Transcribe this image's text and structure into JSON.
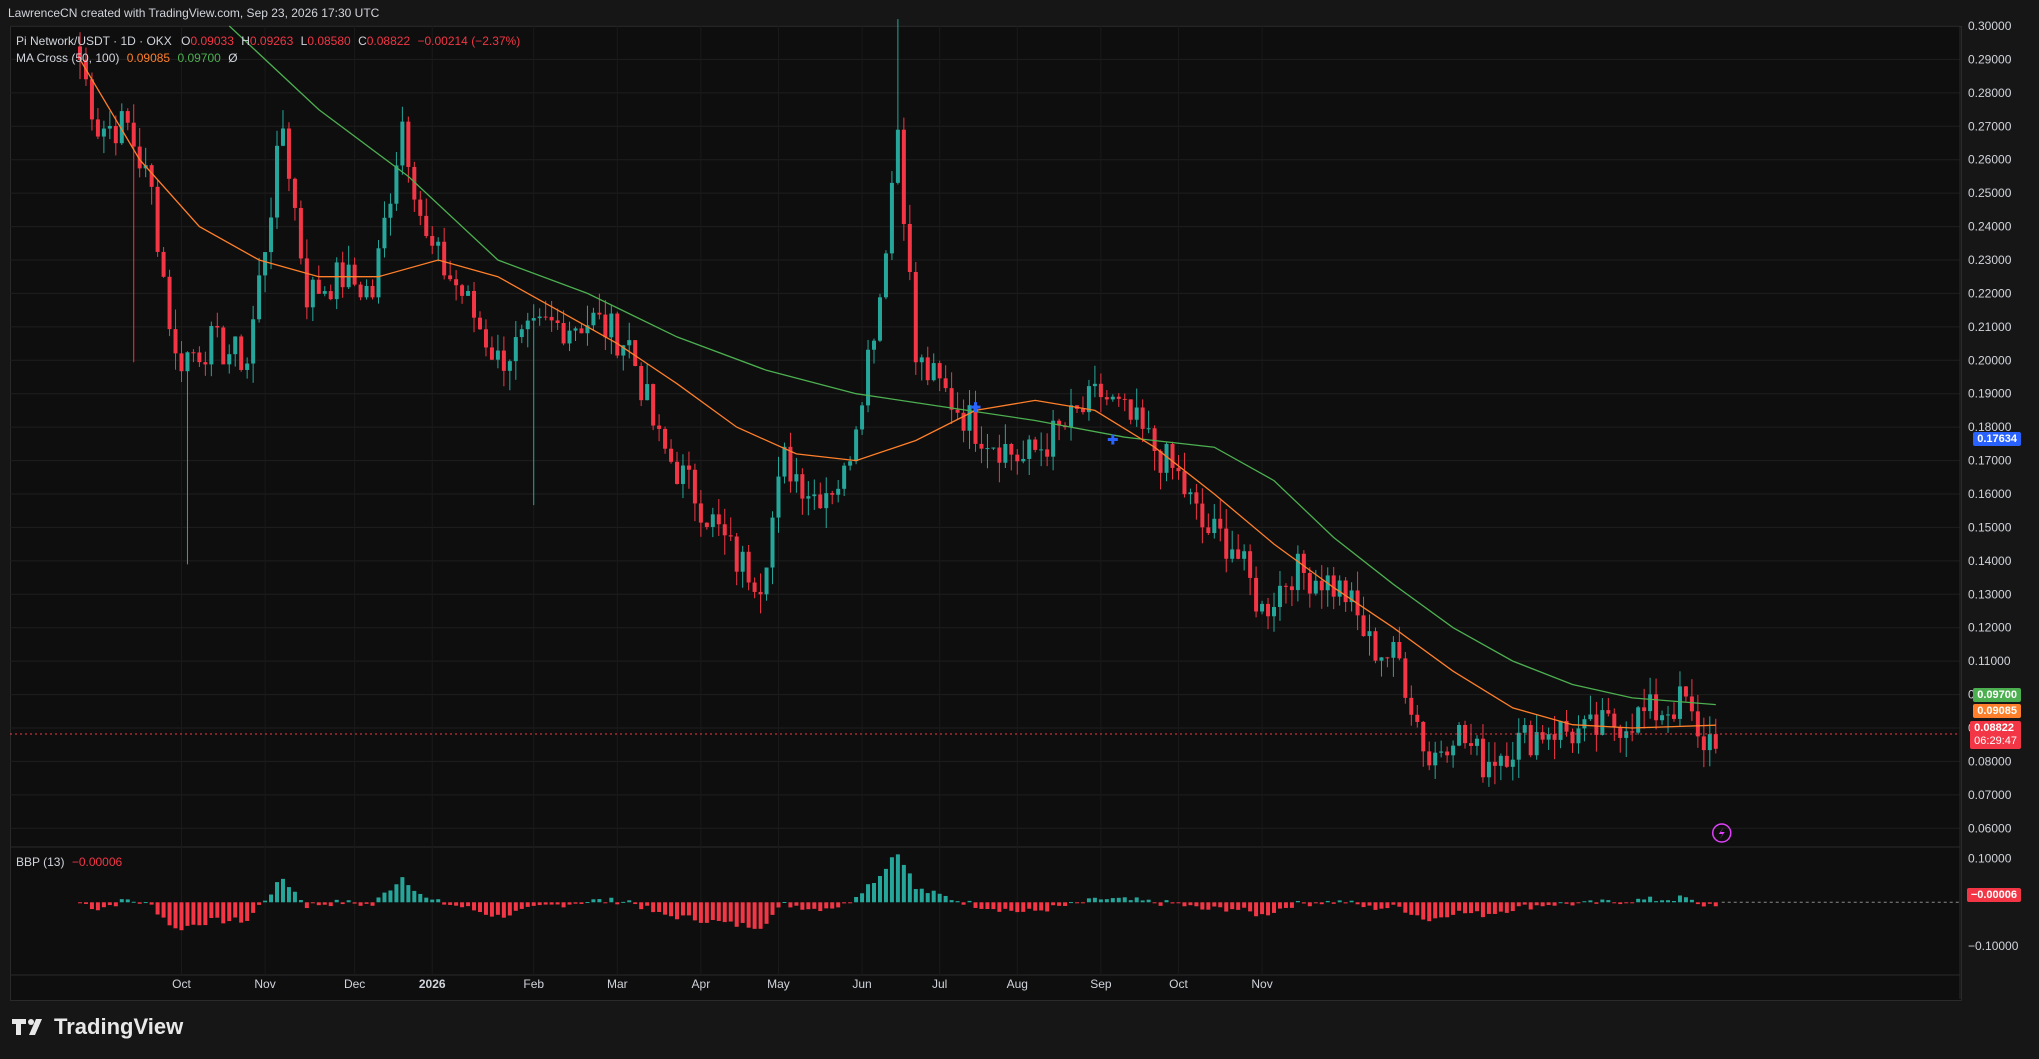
{
  "header": {
    "attribution": "LawrenceCN created with TradingView.com, Sep 23, 2026 17:30 UTC"
  },
  "legend": {
    "symbol": "Pi Network/USDT · 1D · OKX",
    "o_label": "O",
    "o_value": "0.09033",
    "h_label": "H",
    "h_value": "0.09263",
    "l_label": "L",
    "l_value": "0.08580",
    "c_label": "C",
    "c_value": "0.08822",
    "change": "−0.00214 (−2.37%)",
    "ma_title": "MA Cross (50, 100)",
    "ma50_value": "0.09085",
    "ma100_value": "0.09700",
    "ma_extra": "Ø",
    "bbp_title": "BBP (13)",
    "bbp_value": "−0.00006"
  },
  "price_tags": {
    "ma100": "0.09700",
    "ma50": "0.09085",
    "last": "0.08822",
    "countdown": "06:29:47",
    "cross": "0.17634",
    "bbp": "−0.00006"
  },
  "colors": {
    "up": "#26a69a",
    "down": "#f23645",
    "ma50": "#ff7f2a",
    "ma100": "#4caf50",
    "cross_tag": "#2962ff",
    "background": "#0e0e0e"
  },
  "brand": {
    "name": "TradingView"
  },
  "chart_data": {
    "type": "candlestick",
    "y_axis": {
      "min": 0.055,
      "max": 0.3,
      "ticks": [
        "0.30000",
        "0.29000",
        "0.28000",
        "0.27000",
        "0.26000",
        "0.25000",
        "0.24000",
        "0.23000",
        "0.22000",
        "0.21000",
        "0.20000",
        "0.19000",
        "0.18000",
        "0.17000",
        "0.16000",
        "0.15000",
        "0.14000",
        "0.13000",
        "0.12000",
        "0.11000",
        "0.10000",
        "0.09000",
        "0.08000",
        "0.07000",
        "0.06000"
      ]
    },
    "x_axis": {
      "ticks": [
        "Oct",
        "Nov",
        "Dec",
        "2026",
        "Feb",
        "Mar",
        "Apr",
        "May",
        "Jun",
        "Jul",
        "Aug",
        "Sep",
        "Oct",
        "Nov"
      ]
    },
    "bbp_axis": {
      "ticks": [
        "0.10000",
        "−0.10000"
      ],
      "min": -0.16,
      "max": 0.12
    },
    "anchors": [
      [
        0,
        0.29
      ],
      [
        3,
        0.27
      ],
      [
        8,
        0.27
      ],
      [
        12,
        0.25
      ],
      [
        16,
        0.2
      ],
      [
        22,
        0.205
      ],
      [
        28,
        0.2
      ],
      [
        34,
        0.27
      ],
      [
        38,
        0.22
      ],
      [
        44,
        0.225
      ],
      [
        49,
        0.22
      ],
      [
        54,
        0.272
      ],
      [
        58,
        0.235
      ],
      [
        64,
        0.22
      ],
      [
        70,
        0.2
      ],
      [
        78,
        0.21
      ],
      [
        86,
        0.212
      ],
      [
        92,
        0.205
      ],
      [
        97,
        0.175
      ],
      [
        103,
        0.16
      ],
      [
        110,
        0.14
      ],
      [
        114,
        0.135
      ],
      [
        118,
        0.17
      ],
      [
        123,
        0.16
      ],
      [
        128,
        0.165
      ],
      [
        134,
        0.22
      ],
      [
        137,
        0.27
      ],
      [
        140,
        0.2
      ],
      [
        145,
        0.19
      ],
      [
        150,
        0.18
      ],
      [
        158,
        0.17
      ],
      [
        165,
        0.18
      ],
      [
        171,
        0.19
      ],
      [
        177,
        0.18
      ],
      [
        184,
        0.165
      ],
      [
        188,
        0.15
      ],
      [
        193,
        0.145
      ],
      [
        198,
        0.125
      ],
      [
        203,
        0.137
      ],
      [
        208,
        0.135
      ],
      [
        212,
        0.13
      ],
      [
        216,
        0.115
      ],
      [
        221,
        0.11
      ],
      [
        226,
        0.08
      ],
      [
        230,
        0.09
      ],
      [
        235,
        0.08
      ],
      [
        240,
        0.085
      ],
      [
        246,
        0.09
      ],
      [
        252,
        0.088
      ],
      [
        258,
        0.092
      ],
      [
        264,
        0.095
      ],
      [
        269,
        0.098
      ],
      [
        271,
        0.085
      ],
      [
        274,
        0.0882
      ]
    ],
    "ma50": [
      [
        0,
        0.29
      ],
      [
        10,
        0.26
      ],
      [
        20,
        0.24
      ],
      [
        30,
        0.23
      ],
      [
        40,
        0.225
      ],
      [
        50,
        0.225
      ],
      [
        60,
        0.23
      ],
      [
        70,
        0.225
      ],
      [
        80,
        0.215
      ],
      [
        90,
        0.205
      ],
      [
        100,
        0.193
      ],
      [
        110,
        0.18
      ],
      [
        120,
        0.172
      ],
      [
        130,
        0.17
      ],
      [
        140,
        0.176
      ],
      [
        150,
        0.185
      ],
      [
        160,
        0.188
      ],
      [
        170,
        0.185
      ],
      [
        180,
        0.174
      ],
      [
        190,
        0.16
      ],
      [
        200,
        0.145
      ],
      [
        210,
        0.132
      ],
      [
        220,
        0.12
      ],
      [
        230,
        0.107
      ],
      [
        240,
        0.096
      ],
      [
        250,
        0.091
      ],
      [
        260,
        0.09
      ],
      [
        274,
        0.09085
      ]
    ],
    "ma100": [
      [
        25,
        0.3
      ],
      [
        40,
        0.275
      ],
      [
        55,
        0.255
      ],
      [
        70,
        0.23
      ],
      [
        85,
        0.22
      ],
      [
        100,
        0.207
      ],
      [
        115,
        0.197
      ],
      [
        130,
        0.19
      ],
      [
        145,
        0.186
      ],
      [
        160,
        0.182
      ],
      [
        175,
        0.177
      ],
      [
        190,
        0.174
      ],
      [
        200,
        0.164
      ],
      [
        210,
        0.147
      ],
      [
        220,
        0.133
      ],
      [
        230,
        0.12
      ],
      [
        240,
        0.11
      ],
      [
        250,
        0.103
      ],
      [
        260,
        0.099
      ],
      [
        274,
        0.097
      ]
    ],
    "crosses": [
      {
        "i": 150,
        "v": 0.186
      },
      {
        "i": 173,
        "v": 0.1763
      }
    ],
    "num_candles": 275
  }
}
